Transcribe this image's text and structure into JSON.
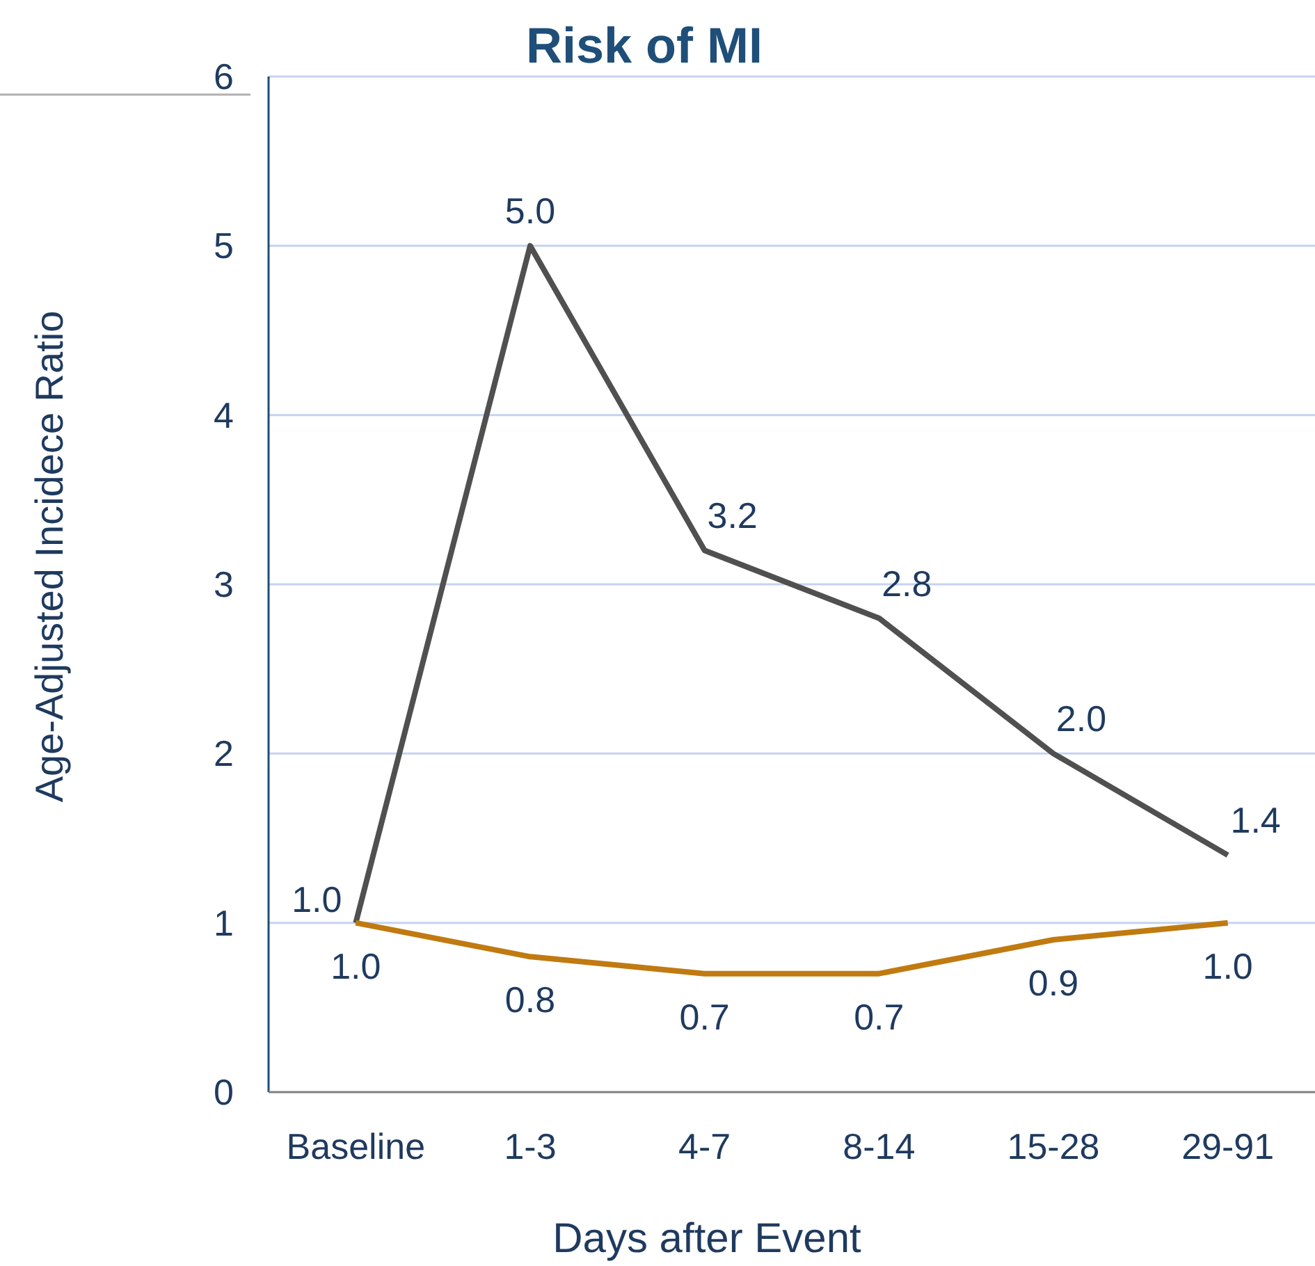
{
  "chart_data": {
    "type": "line",
    "title": "Risk of MI",
    "xlabel": "Days after Event",
    "ylabel": "Age-Adjusted Incidece Ratio",
    "categories": [
      "Baseline",
      "1-3",
      "4-7",
      "8-14",
      "15-28",
      "29-91"
    ],
    "series": [
      {
        "color": "#505050",
        "values": [
          1.0,
          5.0,
          3.2,
          2.8,
          2.0,
          1.4
        ],
        "value_labels": [
          "1.0",
          "5.0",
          "3.2",
          "2.8",
          "2.0",
          "1.4"
        ]
      },
      {
        "color": "#c07a10",
        "values": [
          1.0,
          0.8,
          0.7,
          0.7,
          0.9,
          1.0
        ],
        "value_labels": [
          "1.0",
          "0.8",
          "0.7",
          "0.7",
          "0.9",
          "1.0"
        ]
      }
    ],
    "ylim": [
      0,
      6
    ],
    "yticks": [
      0,
      1,
      2,
      3,
      4,
      5,
      6
    ],
    "grid": "y",
    "marker": "none",
    "line_style": "solid"
  }
}
